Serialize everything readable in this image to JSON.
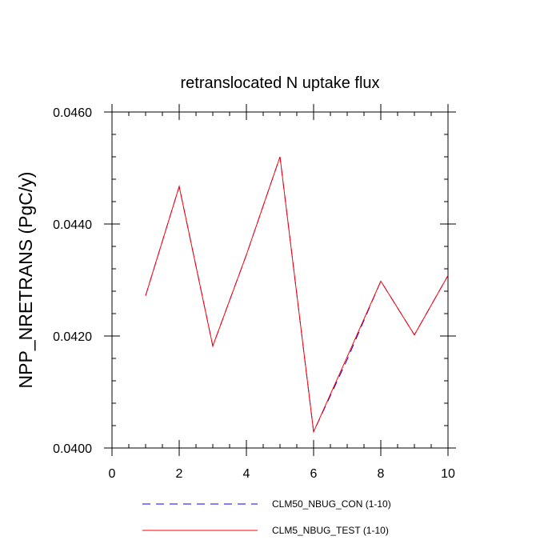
{
  "chart_data": {
    "type": "line",
    "title": "retranslocated N uptake flux",
    "xlabel": "",
    "ylabel": "NPP_NRETRANS  (PgC/y)",
    "xlim": [
      0,
      10
    ],
    "ylim": [
      0.04,
      0.046
    ],
    "x_ticks": [
      0,
      2,
      4,
      6,
      8,
      10
    ],
    "x_tick_labels": [
      "0",
      "2",
      "4",
      "6",
      "8",
      "10"
    ],
    "y_ticks": [
      0.04,
      0.042,
      0.044,
      0.046
    ],
    "y_tick_labels": [
      "0.0400",
      "0.0420",
      "0.0440",
      "0.0460"
    ],
    "x_minor_step": 0.5,
    "y_minor_step": 0.0004,
    "grid": false,
    "legend_position": "bottom",
    "x": [
      1,
      2,
      3,
      4,
      5,
      6,
      7,
      8,
      9,
      10
    ],
    "series": [
      {
        "name": "CLM50_NBUG_CON (1-10)",
        "color": "#0000ff",
        "style": "dashed",
        "values": [
          0.04272,
          0.04467,
          0.04182,
          0.04345,
          0.0452,
          0.04029,
          0.04158,
          0.04298,
          0.04202,
          0.04308
        ]
      },
      {
        "name": "CLM5_NBUG_TEST (1-10)",
        "color": "#ff0000",
        "style": "solid",
        "values": [
          0.04272,
          0.04467,
          0.04182,
          0.04345,
          0.0452,
          0.04029,
          0.04163,
          0.04298,
          0.04202,
          0.04308
        ]
      }
    ]
  }
}
